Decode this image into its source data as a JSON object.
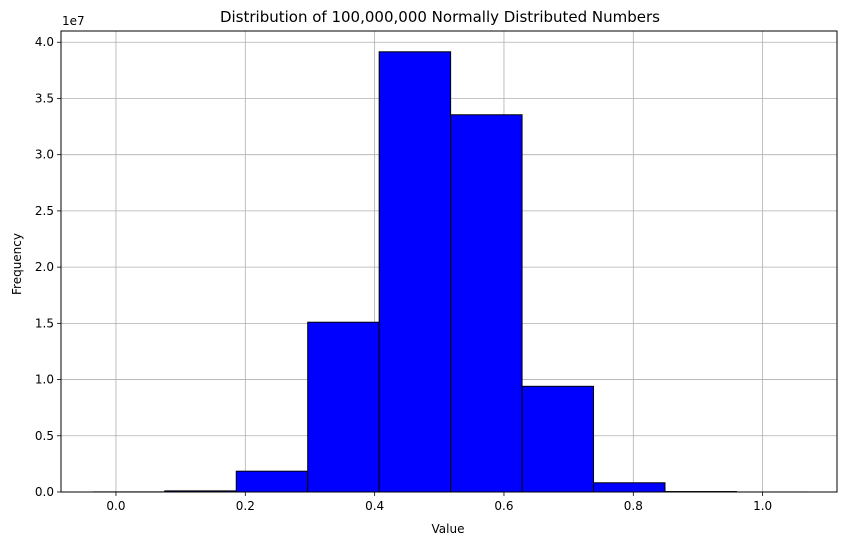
{
  "chart_data": {
    "type": "bar",
    "title": "Distribution of 100,000,000 Normally Distributed Numbers",
    "xlabel": "Value",
    "ylabel": "Frequency",
    "y_offset_label": "1e7",
    "xlim": [
      -0.085,
      1.115
    ],
    "ylim": [
      0,
      41000000
    ],
    "grid": true,
    "bar_color": "#0000ff",
    "edge_color": "#000000",
    "xticks": [
      0.0,
      0.2,
      0.4,
      0.6,
      0.8,
      1.0
    ],
    "xtick_labels": [
      "0.0",
      "0.2",
      "0.4",
      "0.6",
      "0.8",
      "1.0"
    ],
    "yticks": [
      0,
      5000000,
      10000000,
      15000000,
      20000000,
      25000000,
      30000000,
      35000000,
      40000000
    ],
    "ytick_labels": [
      "0.0",
      "0.5",
      "1.0",
      "1.5",
      "2.0",
      "2.5",
      "3.0",
      "3.5",
      "4.0"
    ],
    "bin_edges": [
      -0.035,
      0.0755,
      0.186,
      0.2965,
      0.407,
      0.5175,
      0.628,
      0.7385,
      0.849,
      0.9595,
      1.07
    ],
    "values": [
      10000,
      100000,
      1850000,
      15100000,
      39150000,
      33550000,
      9400000,
      820000,
      40000,
      2000
    ]
  }
}
